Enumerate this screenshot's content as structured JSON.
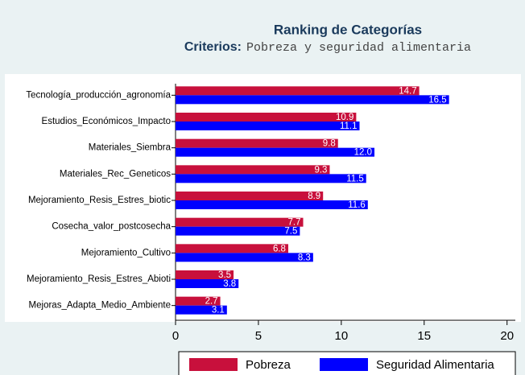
{
  "chart_data": {
    "type": "hbar",
    "title": "Ranking de Categorías",
    "subtitle_label": "Criterios:",
    "subtitle": "Pobreza y seguridad alimentaria",
    "categories": [
      "Tecnología_producción_agronomía",
      "Estudios_Económicos_Impacto",
      "Materiales_Siembra",
      "Materiales_Rec_Geneticos",
      "Mejoramiento_Resis_Estres_biotic",
      "Cosecha_valor_postcosecha",
      "Mejoramiento_Cultivo",
      "Mejoramiento_Resis_Estres_Abioti",
      "Mejoras_Adapta_Medio_Ambiente"
    ],
    "series": [
      {
        "name": "Pobreza",
        "color": "#c8103c",
        "values": [
          14.7,
          10.9,
          9.8,
          9.3,
          8.9,
          7.7,
          6.8,
          3.5,
          2.7
        ],
        "value_labels": [
          "14.7",
          "10.9",
          "9.8",
          "9.3",
          "8.9",
          "7.7",
          "6.8",
          "3.5",
          "2.7"
        ]
      },
      {
        "name": "Seguridad Alimentaria",
        "color": "#0000ff",
        "values": [
          16.5,
          11.1,
          12,
          11.5,
          11.6,
          7.5,
          8.3,
          3.8,
          3.1
        ],
        "value_labels": [
          "16.5",
          "11.1",
          "12.0",
          "11.5",
          "11.6",
          "7.5",
          "8.3",
          "3.8",
          "3.1"
        ]
      }
    ],
    "xlim": [
      0,
      20.5
    ],
    "xticks": [
      0,
      5,
      10,
      15,
      20
    ]
  }
}
